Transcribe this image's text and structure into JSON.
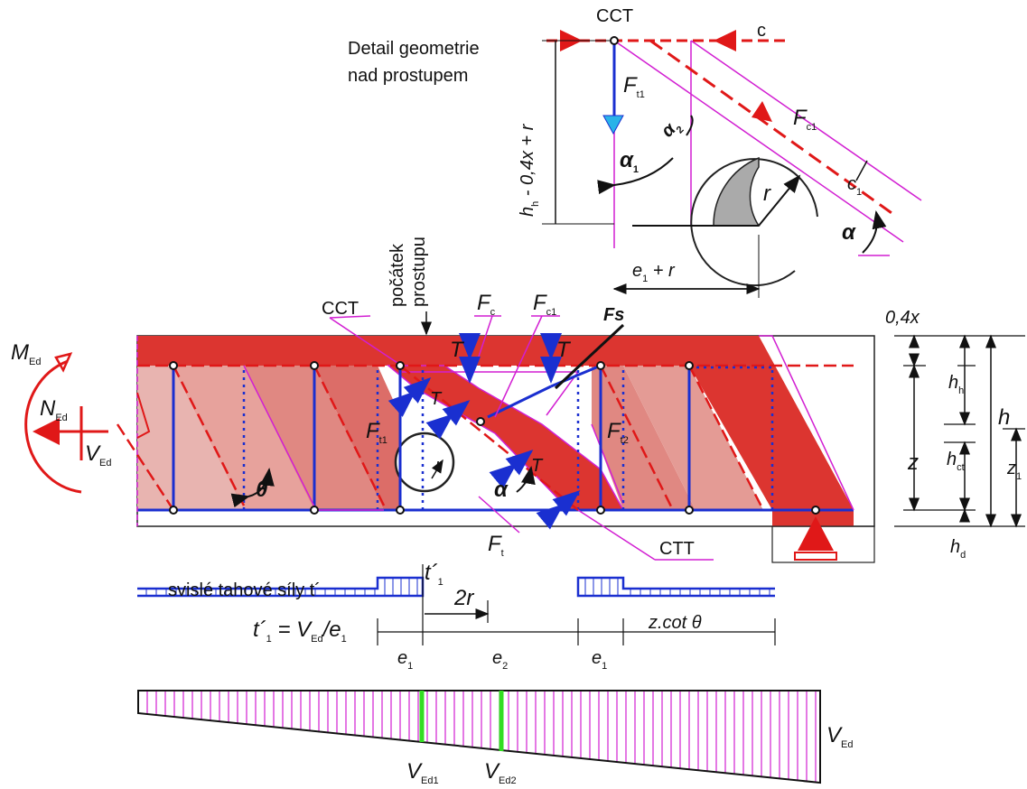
{
  "detail": {
    "title": [
      "Detail geometrie",
      "nad prostupem"
    ],
    "cct": "CCT",
    "c": "c",
    "ft1": {
      "main": "F",
      "sub": "t1"
    },
    "fc1": {
      "main": "F",
      "sub": "c1"
    },
    "alpha1": {
      "main": "α",
      "sub": "1"
    },
    "alpha2": {
      "main": "α",
      "sub": "2"
    },
    "r": "r",
    "c1": {
      "main": "c",
      "sub": "1"
    },
    "alpha": "α",
    "height": {
      "main": "h",
      "sub": "h",
      "rest": " - 0,4x + r"
    },
    "width": {
      "main": "e",
      "sub": "1",
      "rest": " + r"
    }
  },
  "beam": {
    "opening_start": [
      "počátek",
      "prostupu"
    ],
    "cct": "CCT",
    "fc": {
      "main": "F",
      "sub": "c"
    },
    "fc1": {
      "main": "F",
      "sub": "c1"
    },
    "fs": "Fs",
    "t": [
      "T",
      "T",
      "T",
      "T"
    ],
    "ft1": {
      "main": "F",
      "sub": "t1"
    },
    "ft2": {
      "main": "F",
      "sub": "t2"
    },
    "r": "r",
    "alpha": "α",
    "theta": "θ",
    "ft": {
      "main": "F",
      "sub": "t"
    },
    "ctt": "CTT",
    "med": {
      "main": "M",
      "sub": "Ed"
    },
    "ned": {
      "main": "N",
      "sub": "Ed"
    },
    "ved": {
      "main": "V",
      "sub": "Ed"
    }
  },
  "dimensions": {
    "x04": "0,4x",
    "hh": {
      "main": "h",
      "sub": "h"
    },
    "h": "h",
    "hct": {
      "main": "h",
      "sub": "ct"
    },
    "z": "z",
    "z1": {
      "main": "z",
      "sub": "1"
    },
    "hd": {
      "main": "h",
      "sub": "d"
    }
  },
  "tension": {
    "title": "svislé tahové síly t´",
    "t1": {
      "main": "t´",
      "sub": "1"
    },
    "two_r": "2r",
    "formula": [
      {
        "main": "t´",
        "sub": "1"
      },
      {
        "main": " = V",
        "sub": "Ed"
      },
      {
        "main": "/e",
        "sub": "1"
      }
    ],
    "e1a": {
      "main": "e",
      "sub": "1"
    },
    "e2": {
      "main": "e",
      "sub": "2"
    },
    "e1b": {
      "main": "e",
      "sub": "1"
    },
    "zcot": "z.cot θ"
  },
  "shear": {
    "ved": {
      "main": "V",
      "sub": "Ed"
    },
    "ved1": {
      "main": "V",
      "sub": "Ed1"
    },
    "ved2": {
      "main": "V",
      "sub": "Ed2"
    }
  }
}
